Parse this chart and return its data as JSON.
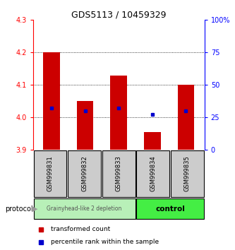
{
  "title": "GDS5113 / 10459329",
  "samples": [
    "GSM999831",
    "GSM999832",
    "GSM999833",
    "GSM999834",
    "GSM999835"
  ],
  "bar_bottoms": [
    3.9,
    3.9,
    3.9,
    3.9,
    3.9
  ],
  "bar_tops": [
    4.2,
    4.05,
    4.13,
    3.955,
    4.1
  ],
  "percentile_values": [
    4.03,
    4.02,
    4.03,
    4.01,
    4.02
  ],
  "ylim": [
    3.9,
    4.3
  ],
  "yticks_left": [
    3.9,
    4.0,
    4.1,
    4.2,
    4.3
  ],
  "yticks_right": [
    0,
    25,
    50,
    75,
    100
  ],
  "yticks_right_labels": [
    "0",
    "25",
    "50",
    "75",
    "100%"
  ],
  "bar_color": "#cc0000",
  "percentile_color": "#0000cc",
  "group1_label": "Grainyhead-like 2 depletion",
  "group2_label": "control",
  "group1_bg": "#b8f0b8",
  "group2_bg": "#44ee44",
  "sample_bg": "#cccccc",
  "protocol_label": "protocol",
  "legend1_label": "transformed count",
  "legend2_label": "percentile rank within the sample",
  "title_fontsize": 9,
  "tick_fontsize": 7,
  "bar_width": 0.5
}
